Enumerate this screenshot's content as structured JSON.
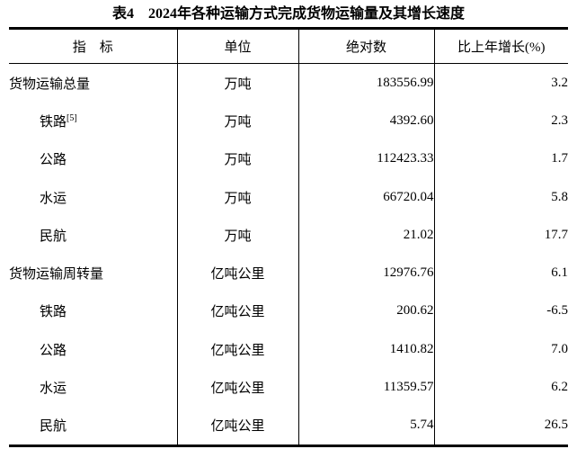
{
  "title": "表4　2024年各种运输方式完成货物运输量及其增长速度",
  "colors": {
    "background": "#ffffff",
    "text": "#000000",
    "border": "#000000"
  },
  "table": {
    "columns": [
      {
        "label": "指　标"
      },
      {
        "label": "单位"
      },
      {
        "label": "绝对数"
      },
      {
        "label": "比上年增长(%)"
      }
    ],
    "rows": [
      {
        "indicator": "货物运输总量",
        "sup": "",
        "unit": "万吨",
        "value": "183556.99",
        "growth": "3.2",
        "indent": false
      },
      {
        "indicator": "铁路",
        "sup": "[5]",
        "unit": "万吨",
        "value": "4392.60",
        "growth": "2.3",
        "indent": true
      },
      {
        "indicator": "公路",
        "sup": "",
        "unit": "万吨",
        "value": "112423.33",
        "growth": "1.7",
        "indent": true
      },
      {
        "indicator": "水运",
        "sup": "",
        "unit": "万吨",
        "value": "66720.04",
        "growth": "5.8",
        "indent": true
      },
      {
        "indicator": "民航",
        "sup": "",
        "unit": "万吨",
        "value": "21.02",
        "growth": "17.7",
        "indent": true
      },
      {
        "indicator": "货物运输周转量",
        "sup": "",
        "unit": "亿吨公里",
        "value": "12976.76",
        "growth": "6.1",
        "indent": false
      },
      {
        "indicator": "铁路",
        "sup": "",
        "unit": "亿吨公里",
        "value": "200.62",
        "growth": "-6.5",
        "indent": true
      },
      {
        "indicator": "公路",
        "sup": "",
        "unit": "亿吨公里",
        "value": "1410.82",
        "growth": "7.0",
        "indent": true
      },
      {
        "indicator": "水运",
        "sup": "",
        "unit": "亿吨公里",
        "value": "11359.57",
        "growth": "6.2",
        "indent": true
      },
      {
        "indicator": "民航",
        "sup": "",
        "unit": "亿吨公里",
        "value": "5.74",
        "growth": "26.5",
        "indent": true
      }
    ]
  }
}
